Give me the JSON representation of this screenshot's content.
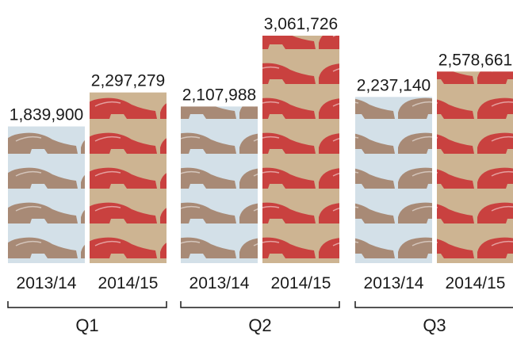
{
  "chart_data": {
    "type": "bar",
    "categories": [
      "Q1",
      "Q2",
      "Q3"
    ],
    "series": [
      {
        "name": "2013/14",
        "color": "#a88a76",
        "background": "#d3e0e8",
        "values": [
          1839900,
          2107988,
          2237140
        ],
        "value_labels": [
          "1,839,900",
          "2,107,988",
          "2,237,140"
        ]
      },
      {
        "name": "2014/15",
        "color": "#c9413f",
        "background": "#cdb492",
        "values": [
          2297279,
          3061726,
          2578661
        ],
        "value_labels": [
          "2,297,279",
          "3,061,726",
          "2,578,661"
        ]
      }
    ]
  }
}
